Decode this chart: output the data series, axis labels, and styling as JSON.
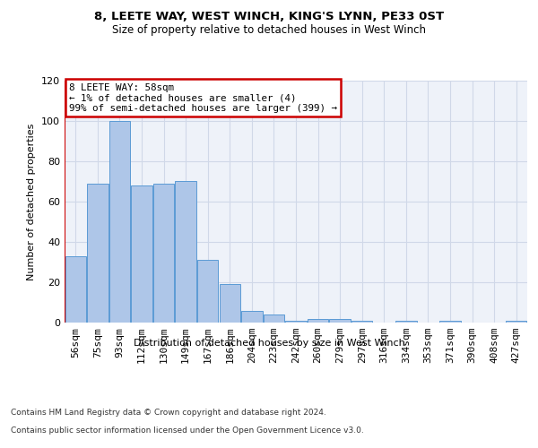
{
  "title": "8, LEETE WAY, WEST WINCH, KING'S LYNN, PE33 0ST",
  "subtitle": "Size of property relative to detached houses in West Winch",
  "xlabel": "Distribution of detached houses by size in West Winch",
  "ylabel": "Number of detached properties",
  "bar_color": "#aec6e8",
  "bar_edge_color": "#5b9bd5",
  "bar_heights": [
    33,
    69,
    100,
    68,
    69,
    70,
    31,
    19,
    6,
    4,
    1,
    2,
    2,
    1,
    0,
    1,
    0,
    1,
    0,
    0,
    1
  ],
  "bin_labels": [
    "56sqm",
    "75sqm",
    "93sqm",
    "112sqm",
    "130sqm",
    "149sqm",
    "167sqm",
    "186sqm",
    "204sqm",
    "223sqm",
    "242sqm",
    "260sqm",
    "279sqm",
    "297sqm",
    "316sqm",
    "334sqm",
    "353sqm",
    "371sqm",
    "390sqm",
    "408sqm",
    "427sqm"
  ],
  "ylim": [
    0,
    120
  ],
  "yticks": [
    0,
    20,
    40,
    60,
    80,
    100,
    120
  ],
  "annotation_box_text": "8 LEETE WAY: 58sqm\n← 1% of detached houses are smaller (4)\n99% of semi-detached houses are larger (399) →",
  "annotation_box_color": "#ffffff",
  "annotation_box_edge_color": "#cc0000",
  "grid_color": "#d0d8e8",
  "ax_facecolor": "#eef2f9",
  "background_color": "#ffffff",
  "footer_line1": "Contains HM Land Registry data © Crown copyright and database right 2024.",
  "footer_line2": "Contains public sector information licensed under the Open Government Licence v3.0.",
  "highlight_bar_color": "#cc0000"
}
